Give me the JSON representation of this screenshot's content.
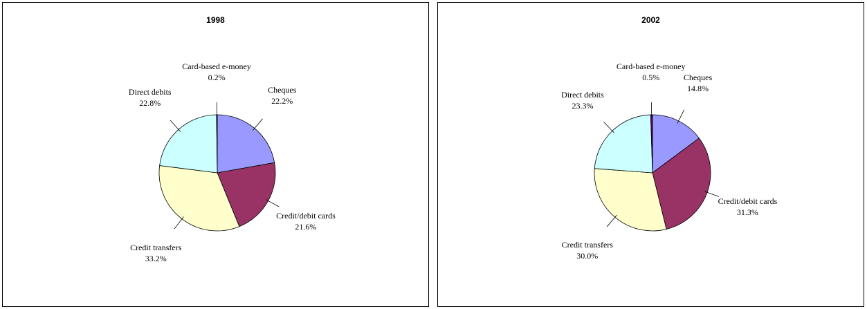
{
  "chart_data": [
    {
      "type": "pie",
      "title": "1998",
      "categories": [
        "Cheques",
        "Credit/debit cards",
        "Credit transfers",
        "Direct debits",
        "Card-based e-money"
      ],
      "values": [
        22.2,
        21.6,
        33.2,
        22.8,
        0.2
      ],
      "value_labels": [
        "22.2%",
        "21.6%",
        "33.2%",
        "22.8%",
        "0.2%"
      ],
      "colors": [
        "#9999ff",
        "#993366",
        "#ffffcc",
        "#ccffff",
        "#660066"
      ]
    },
    {
      "type": "pie",
      "title": "2002",
      "categories": [
        "Cheques",
        "Credit/debit cards",
        "Credit transfers",
        "Direct debits",
        "Card-based e-money"
      ],
      "values": [
        14.8,
        31.3,
        30.0,
        23.3,
        0.5
      ],
      "value_labels": [
        "14.8%",
        "31.3%",
        "30.0%",
        "23.3%",
        "0.5%"
      ],
      "colors": [
        "#9999ff",
        "#993366",
        "#ffffcc",
        "#ccffff",
        "#660066"
      ]
    }
  ]
}
